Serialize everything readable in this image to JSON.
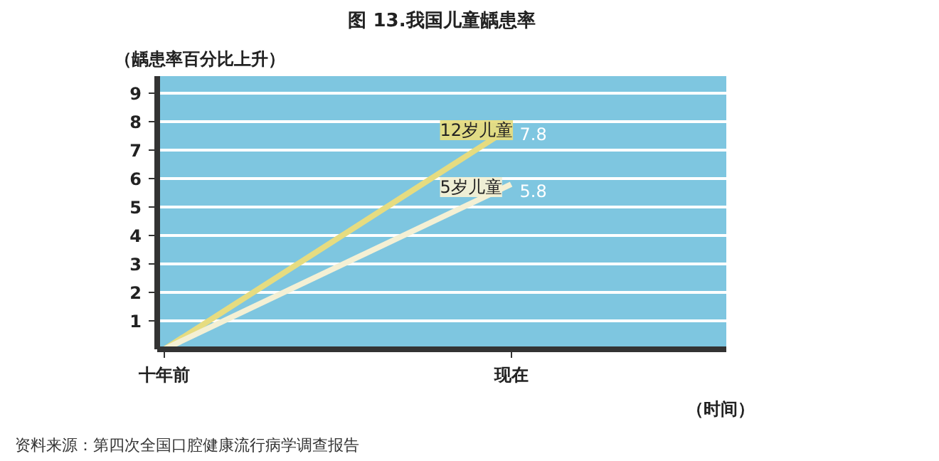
{
  "chart_data": {
    "type": "line",
    "title": "图 13.我国儿童龋患率",
    "ylabel": "（龋患率百分比上升）",
    "xlabel": "（时间）",
    "categories": [
      "十年前",
      "现在"
    ],
    "series": [
      {
        "name": "12岁儿童",
        "color": "#e6dc80",
        "values": [
          0,
          7.8
        ],
        "value_labels": [
          null,
          "7.8"
        ]
      },
      {
        "name": "5岁儿童",
        "color": "#f4f0d4",
        "values": [
          0,
          5.8
        ],
        "value_labels": [
          null,
          "5.8"
        ]
      }
    ],
    "ylim": [
      0,
      9.6
    ],
    "yticks": [
      1,
      2,
      3,
      4,
      5,
      6,
      7,
      8,
      9
    ],
    "grid": "y",
    "marker": "none",
    "line_style": "solid",
    "annotations": [
      "资料来源：第四次全国口腔健康流行病学调查报告"
    ]
  }
}
